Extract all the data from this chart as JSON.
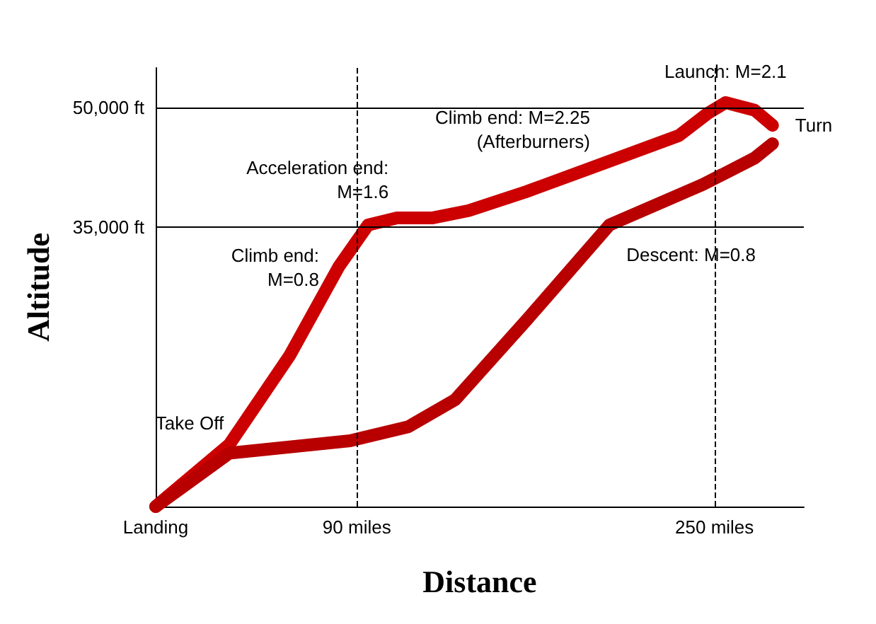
{
  "chart_data": {
    "type": "line",
    "xlabel": "Distance",
    "ylabel": "Altitude",
    "xlim": [
      0,
      290
    ],
    "xticks": [
      {
        "value": 0,
        "label": "Landing"
      },
      {
        "value": 90,
        "label": "90 miles"
      },
      {
        "value": 250,
        "label": "250 miles"
      }
    ],
    "ylim": [
      0,
      55000
    ],
    "yticks": [
      {
        "value": 35000,
        "label": "35,000 ft"
      },
      {
        "value": 50000,
        "label": "50,000 ft"
      }
    ],
    "series": [
      {
        "color": "#cc0000",
        "x": [
          0,
          33,
          60,
          82,
          95,
          108,
          124,
          140,
          166,
          202,
          234,
          247,
          255,
          268,
          276
        ],
        "values": [
          0,
          7800,
          18950,
          30100,
          35300,
          36200,
          36200,
          37100,
          39500,
          43200,
          46500,
          49300,
          50650,
          49700,
          47800
        ]
      },
      {
        "color": "#b80000",
        "x": [
          276,
          268,
          245,
          203,
          166,
          134,
          113,
          87,
          33,
          0
        ],
        "values": [
          45500,
          43700,
          40400,
          35300,
          23400,
          13400,
          10000,
          8250,
          6700,
          0
        ]
      }
    ],
    "ref_lines": [
      {
        "axis": "x",
        "value": 90,
        "color": "#000000",
        "line_style": "dashed"
      },
      {
        "axis": "x",
        "value": 250,
        "color": "#000000",
        "line_style": "dashed"
      },
      {
        "axis": "y",
        "value": 35000,
        "color": "#000000",
        "line_style": "solid"
      },
      {
        "axis": "y",
        "value": 50000,
        "color": "#000000",
        "line_style": "solid"
      }
    ],
    "annotations": [
      {
        "text": "Launch: M=2.1",
        "x": 255,
        "y": 50650
      },
      {
        "text": "Turn",
        "x": 276,
        "y": 47800
      },
      {
        "text": "Climb end: M=2.25\n(Afterburners)",
        "x": 202,
        "y": 43000
      },
      {
        "text": "Acceleration end:\nM=1.6",
        "x": 108,
        "y": 36000
      },
      {
        "text": "Climb end:\nM=0.8",
        "x": 82,
        "y": 30000
      },
      {
        "text": "Descent: M=0.8",
        "x": 203,
        "y": 35500
      },
      {
        "text": "Take Off",
        "x": 33,
        "y": 8000
      }
    ],
    "grid": false,
    "marker": "none",
    "line_style": "solid"
  }
}
